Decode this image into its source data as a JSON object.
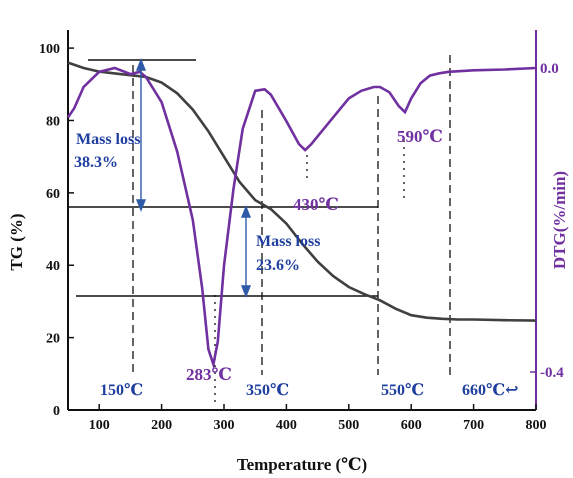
{
  "chart_data": {
    "type": "line",
    "xlabel": "Temperature (℃)",
    "ylabel_left": "TG (%)",
    "ylabel_right": "DTG(%/min)",
    "xlim": [
      50,
      800
    ],
    "ylim_left": [
      0,
      105
    ],
    "ylim_right": [
      -0.45,
      0.05
    ],
    "x_ticks": [
      "100",
      "200",
      "300",
      "400",
      "500",
      "600",
      "700",
      "800"
    ],
    "y_left_ticks": [
      "0",
      "20",
      "40",
      "60",
      "80",
      "100"
    ],
    "y_right_ticks": [
      "0.0",
      "-0.4"
    ],
    "grid": false,
    "series": [
      {
        "axis": "left",
        "color": "#404040",
        "x": [
          50,
          75,
          100,
          125,
          150,
          175,
          200,
          225,
          250,
          275,
          300,
          325,
          350,
          375,
          400,
          425,
          450,
          475,
          500,
          525,
          550,
          575,
          600,
          625,
          650,
          675,
          700,
          750,
          800
        ],
        "y": [
          96,
          94.5,
          93.5,
          93,
          92.5,
          92,
          90.5,
          87.5,
          83,
          77,
          70,
          63,
          58,
          55.5,
          51.5,
          46,
          41,
          37,
          34,
          32,
          30.3,
          28,
          26.2,
          25.5,
          25.2,
          25,
          25,
          24.8,
          24.7
        ]
      },
      {
        "axis": "right",
        "color": "#7030a0",
        "x": [
          50,
          60,
          75,
          100,
          125,
          150,
          165,
          175,
          200,
          225,
          250,
          265,
          275,
          283,
          290,
          300,
          315,
          330,
          350,
          365,
          375,
          400,
          420,
          430,
          440,
          460,
          480,
          500,
          520,
          540,
          550,
          565,
          580,
          590,
          600,
          615,
          630,
          645,
          660,
          700,
          750,
          800
        ],
        "y": [
          -0.065,
          -0.053,
          -0.025,
          -0.005,
          0.0,
          -0.008,
          -0.005,
          -0.012,
          -0.045,
          -0.11,
          -0.2,
          -0.29,
          -0.37,
          -0.39,
          -0.36,
          -0.26,
          -0.16,
          -0.08,
          -0.03,
          -0.028,
          -0.035,
          -0.07,
          -0.1,
          -0.108,
          -0.1,
          -0.08,
          -0.06,
          -0.04,
          -0.03,
          -0.025,
          -0.025,
          -0.032,
          -0.05,
          -0.058,
          -0.04,
          -0.02,
          -0.01,
          -0.007,
          -0.005,
          -0.003,
          -0.002,
          0.0
        ]
      }
    ],
    "annotations": {
      "mass_loss_1": [
        "Mass loss",
        "38.3%"
      ],
      "mass_loss_2": [
        "Mass loss",
        "23.6%"
      ],
      "peaks": [
        "283℃",
        "430℃",
        "590℃"
      ],
      "stages": [
        "150℃",
        "350℃",
        "550℃",
        "660℃↩"
      ]
    }
  }
}
